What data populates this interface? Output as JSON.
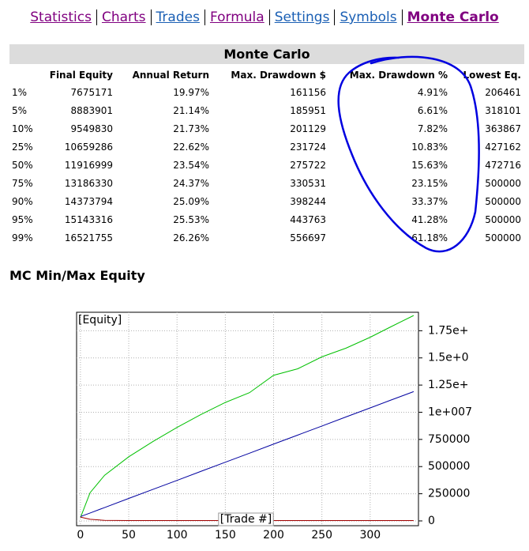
{
  "nav": [
    {
      "label": "Statistics",
      "color": "#800080",
      "active": false
    },
    {
      "label": "Charts",
      "color": "#800080",
      "active": false
    },
    {
      "label": "Trades",
      "color": "#1a5fb4",
      "active": false
    },
    {
      "label": "Formula",
      "color": "#800080",
      "active": false
    },
    {
      "label": "Settings",
      "color": "#1a5fb4",
      "active": false
    },
    {
      "label": "Symbols",
      "color": "#1a5fb4",
      "active": false
    },
    {
      "label": "Monte Carlo",
      "color": "#800080",
      "active": true
    }
  ],
  "table": {
    "title": "Monte Carlo",
    "columns": [
      "Final Equity",
      "Annual Return",
      "Max. Drawdown $",
      "Max. Drawdown %",
      "Lowest Eq."
    ],
    "rows": [
      [
        "1%",
        "7675171",
        "19.97%",
        "161156",
        "4.91%",
        "206461"
      ],
      [
        "5%",
        "8883901",
        "21.14%",
        "185951",
        "6.61%",
        "318101"
      ],
      [
        "10%",
        "9549830",
        "21.73%",
        "201129",
        "7.82%",
        "363867"
      ],
      [
        "25%",
        "10659286",
        "22.62%",
        "231724",
        "10.83%",
        "427162"
      ],
      [
        "50%",
        "11916999",
        "23.54%",
        "275722",
        "15.63%",
        "472716"
      ],
      [
        "75%",
        "13186330",
        "24.37%",
        "330531",
        "23.15%",
        "500000"
      ],
      [
        "90%",
        "14373794",
        "25.09%",
        "398244",
        "33.37%",
        "500000"
      ],
      [
        "95%",
        "15143316",
        "25.53%",
        "443763",
        "41.28%",
        "500000"
      ],
      [
        "99%",
        "16521755",
        "26.26%",
        "556697",
        "61.18%",
        "500000"
      ]
    ]
  },
  "section_title": "MC Min/Max Equity",
  "chart_data": {
    "type": "line",
    "y_label": "[Equity]",
    "x_label": "[Trade #]",
    "x": [
      0,
      10,
      25,
      50,
      75,
      100,
      125,
      150,
      175,
      200,
      225,
      250,
      275,
      300,
      320,
      345
    ],
    "series": [
      {
        "color": "#00c000",
        "values": [
          300000,
          2600000,
          4200000,
          5900000,
          7300000,
          8600000,
          9800000,
          10900000,
          11800000,
          13400000,
          14000000,
          15100000,
          15900000,
          16900000,
          17800000,
          18900000
        ]
      },
      {
        "color": "#0000a0",
        "values": [
          400000,
          730000,
          1230000,
          2070000,
          2900000,
          3730000,
          4570000,
          5400000,
          6230000,
          7070000,
          7900000,
          8730000,
          9570000,
          10400000,
          11070000,
          11900000
        ]
      },
      {
        "color": "#a00000",
        "values": [
          350000,
          150000,
          50000,
          30000,
          30000,
          30000,
          30000,
          30000,
          30000,
          30000,
          30000,
          30000,
          30000,
          30000,
          30000,
          30000
        ]
      }
    ],
    "xlim": [
      -4,
      350
    ],
    "xticks": [
      0,
      50,
      100,
      150,
      200,
      250,
      300
    ],
    "ylim": [
      -440000,
      19200000
    ],
    "yticks": [
      0,
      {
        "value": 2500000,
        "label": "250000"
      },
      {
        "value": 5000000,
        "label": "500000"
      },
      {
        "value": 7500000,
        "label": "750000"
      },
      {
        "value": 10000000,
        "label": "1e+007"
      },
      {
        "value": 12500000,
        "label": "1.25e+"
      },
      {
        "value": 15000000,
        "label": "1.5e+0"
      },
      {
        "value": 17500000,
        "label": "1.75e+"
      }
    ],
    "grid": true
  }
}
